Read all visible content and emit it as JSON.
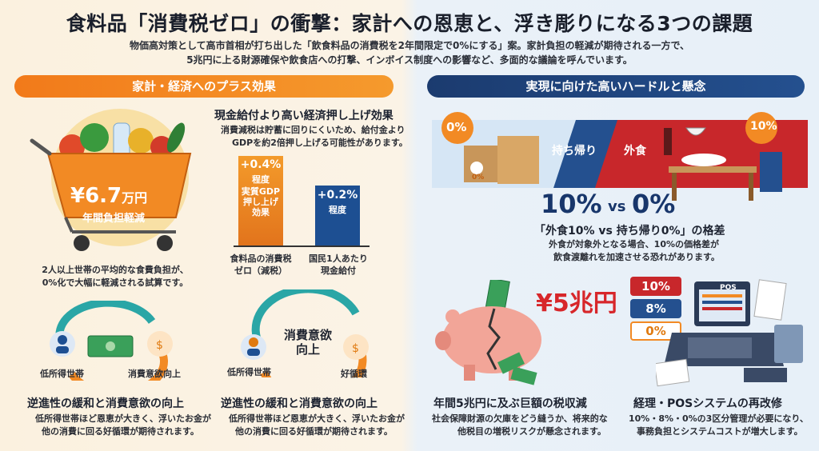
{
  "header": {
    "title": "食料品「消費税ゼロ」の衝撃：家計への恩恵と、浮き彫りになる3つの課題",
    "subtitle_1": "物価高対策として高市首相が打ち出した「飲食料品の消費税を2年間限定で0%にする」案。家計負担の軽減が期待される一方で、",
    "subtitle_2": "5兆円に上る財源確保や飲食店への打撃、インボイス制度への影響など、多面的な議論を呼んでいます。"
  },
  "left": {
    "section_label": "家計・経済へのプラス効果",
    "savings": {
      "amount": "¥6.7",
      "unit": "万円",
      "caption": "年間負担軽減"
    },
    "savings_note_1": "2人以上世帯の平均的な食費負担が、",
    "savings_note_2": "0%化で大幅に軽減される試算です。",
    "gdp": {
      "heading": "現金給付より高い経済押し上げ効果",
      "desc_1": "消費減税は貯蓄に回りにくいため、給付金より",
      "desc_2": "GDPを約2倍押し上げる可能性があります。",
      "bar1_value": "+0.4%",
      "bar1_sub_1": "程度",
      "bar1_sub_2": "実質GDP",
      "bar1_sub_3": "押し上げ",
      "bar1_sub_4": "効果",
      "bar2_value": "+0.2%",
      "bar2_sub": "程度",
      "bar1_label_1": "食料品の消費税",
      "bar1_label_2": "ゼロ（減税）",
      "bar2_label_1": "国民1人あたり",
      "bar2_label_2": "現金給付",
      "bar1_pct": 0.4,
      "bar2_pct": 0.2
    },
    "cycle1": {
      "node_a": "低所得世帯",
      "node_b": "消費意欲向上",
      "heading": "逆進性の緩和と消費意欲の向上",
      "desc_1": "低所得世帯ほど恩恵が大きく、浮いたお金が",
      "desc_2": "他の消費に回る好循環が期待されます。"
    },
    "cycle2": {
      "center_1": "消費意欲",
      "center_2": "向上",
      "node_a": "低所得世帯",
      "node_b": "好循環",
      "heading": "逆進性の緩和と消費意欲の向上",
      "desc_1": "低所得世帯ほど恩恵が大きく、浮いたお金が",
      "desc_2": "他の消費に回る好循環が期待されます。"
    }
  },
  "right": {
    "section_label": "実現に向けた高いハードルと懸念",
    "takeout": {
      "pct_left": "0%",
      "bag_pct": "0%",
      "takeout_label": "持ち帰り",
      "dine_label": "外食",
      "pct_right": "10%"
    },
    "gap": {
      "big_left": "10%",
      "vs": "vs",
      "big_right": "0%",
      "heading": "「外食10% vs 持ち帰り0%」の格差",
      "desc_1": "外食が対象外となる場合、10%の価格差が",
      "desc_2": "飲食渡離れを加速させる恐れがあります。"
    },
    "revenue": {
      "amount": "¥5兆円",
      "heading": "年間5兆円に及ぶ巨額の税収減",
      "desc_1": "社会保障財源の欠庫をどう縫うか、将来的な",
      "desc_2": "他税目の増税リスクが懸念されます。"
    },
    "pos": {
      "rate1": "10%",
      "rate2": "8%",
      "rate3": "0%",
      "pos_tag": "POS",
      "heading": "経理・POSシステムの再改修",
      "desc_1": "10%・8%・0%の3区分管理が必要になり、",
      "desc_2": "事務負担とシステムコストが増大します。"
    }
  },
  "colors": {
    "orange": "#f27a1a",
    "navy": "#1b3b6f",
    "red": "#d7262a",
    "green": "#2e8b57"
  }
}
